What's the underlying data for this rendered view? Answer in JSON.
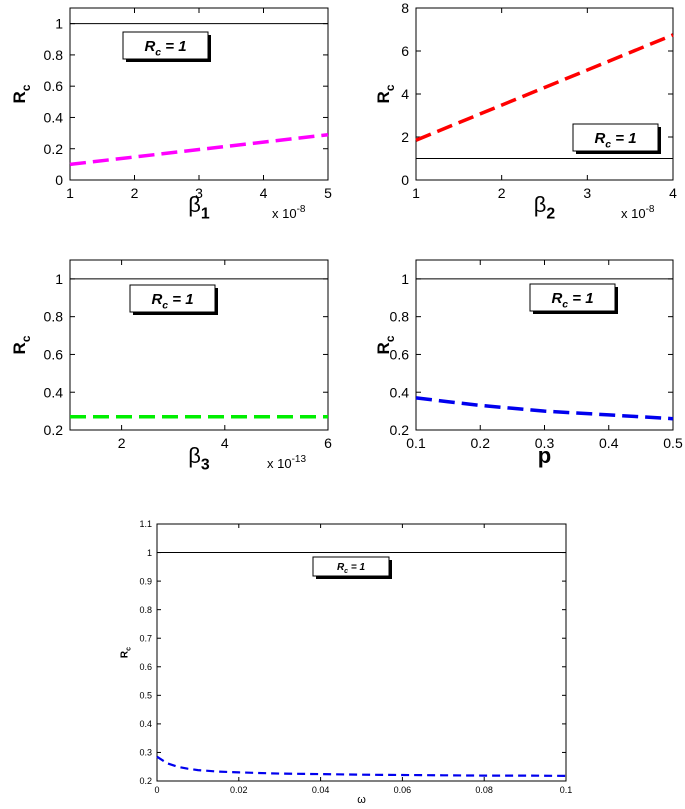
{
  "chart_data": [
    {
      "type": "line",
      "xlabel_sym": "β",
      "xlabel_sub": "1",
      "ylabel_main": "R",
      "ylabel_sub": "c",
      "multiplier_base": "x 10",
      "multiplier_exp": "-8",
      "xlim": [
        1,
        5
      ],
      "ylim": [
        0,
        1.1
      ],
      "xticks": [
        1,
        2,
        3,
        4,
        5
      ],
      "yticks": [
        0,
        0.2,
        0.4,
        0.6,
        0.8,
        1
      ],
      "ytick_labels": [
        "0",
        "0.2",
        "0.4",
        "0.6",
        "0.8",
        "1"
      ],
      "series": [
        {
          "x": [
            1,
            5
          ],
          "y": [
            0.1,
            0.29
          ],
          "color": "#ff00ff",
          "style": "dashed"
        }
      ],
      "reference": {
        "y": 1,
        "label_main": "R",
        "label_sub": "c",
        "label_rest": " = 1",
        "legend": "top-left"
      },
      "grid": false
    },
    {
      "type": "line",
      "xlabel_sym": "β",
      "xlabel_sub": "2",
      "ylabel_main": "R",
      "ylabel_sub": "c",
      "multiplier_base": "x 10",
      "multiplier_exp": "-8",
      "xlim": [
        1,
        4
      ],
      "ylim": [
        0,
        8
      ],
      "xticks": [
        1,
        2,
        3,
        4
      ],
      "yticks": [
        0,
        2,
        4,
        6,
        8
      ],
      "ytick_labels": [
        "0",
        "2",
        "4",
        "6",
        "8"
      ],
      "series": [
        {
          "x": [
            1,
            4
          ],
          "y": [
            1.85,
            6.75
          ],
          "color": "#ff0000",
          "style": "dashed"
        }
      ],
      "reference": {
        "y": 1,
        "label_main": "R",
        "label_sub": "c",
        "label_rest": " = 1",
        "legend": "bottom-right"
      },
      "grid": false
    },
    {
      "type": "line",
      "xlabel_sym": "β",
      "xlabel_sub": "3",
      "ylabel_main": "R",
      "ylabel_sub": "c",
      "multiplier_base": "x 10",
      "multiplier_exp": "-13",
      "xlim": [
        1,
        6
      ],
      "ylim": [
        0.2,
        1.1
      ],
      "xticks": [
        2,
        4,
        6
      ],
      "yticks": [
        0.2,
        0.4,
        0.6,
        0.8,
        1
      ],
      "ytick_labels": [
        "0.2",
        "0.4",
        "0.6",
        "0.8",
        "1"
      ],
      "series": [
        {
          "x": [
            1,
            6
          ],
          "y": [
            0.27,
            0.27
          ],
          "color": "#00ee00",
          "style": "dashed"
        }
      ],
      "reference": {
        "y": 1,
        "label_main": "R",
        "label_sub": "c",
        "label_rest": " = 1",
        "legend": "top-left"
      },
      "grid": false
    },
    {
      "type": "line",
      "xlabel_sym": "p",
      "xlabel_sub": "",
      "ylabel_main": "R",
      "ylabel_sub": "c",
      "multiplier_base": "",
      "multiplier_exp": "",
      "xlim": [
        0.1,
        0.5
      ],
      "ylim": [
        0.2,
        1.1
      ],
      "xticks": [
        0.1,
        0.2,
        0.3,
        0.4,
        0.5
      ],
      "yticks": [
        0.2,
        0.4,
        0.6,
        0.8,
        1
      ],
      "xtick_labels": [
        "0.1",
        "0.2",
        "0.3",
        "0.4",
        "0.5"
      ],
      "ytick_labels": [
        "0.2",
        "0.4",
        "0.6",
        "0.8",
        "1"
      ],
      "series": [
        {
          "x": [
            0.1,
            0.15,
            0.2,
            0.25,
            0.3,
            0.35,
            0.4,
            0.45,
            0.5
          ],
          "y": [
            0.37,
            0.35,
            0.33,
            0.315,
            0.3,
            0.29,
            0.28,
            0.27,
            0.26
          ],
          "color": "#0000ee",
          "style": "dashed"
        }
      ],
      "reference": {
        "y": 1,
        "label_main": "R",
        "label_sub": "c",
        "label_rest": " = 1",
        "legend": "top-right"
      },
      "grid": false
    },
    {
      "type": "line",
      "xlabel_sym": "ω",
      "xlabel_sub": "",
      "ylabel_main": "R",
      "ylabel_sub": "c",
      "multiplier_base": "",
      "multiplier_exp": "",
      "xlim": [
        0,
        0.1
      ],
      "ylim": [
        0.2,
        1.1
      ],
      "xticks": [
        0,
        0.02,
        0.04,
        0.06,
        0.08,
        0.1
      ],
      "xtick_labels": [
        "0",
        "0.02",
        "0.04",
        "0.06",
        "0.08",
        "0.1"
      ],
      "yticks": [
        0.2,
        0.3,
        0.4,
        0.5,
        0.6,
        0.7,
        0.8,
        0.9,
        1,
        1.1
      ],
      "ytick_labels": [
        "0.2",
        "0.3",
        "0.4",
        "0.5",
        "0.6",
        "0.7",
        "0.8",
        "0.9",
        "1",
        "1.1"
      ],
      "series": [
        {
          "x": [
            0,
            0.0025,
            0.005,
            0.0075,
            0.01,
            0.015,
            0.02,
            0.03,
            0.04,
            0.05,
            0.06,
            0.07,
            0.08,
            0.09,
            0.1
          ],
          "y": [
            0.285,
            0.262,
            0.25,
            0.243,
            0.238,
            0.233,
            0.23,
            0.226,
            0.224,
            0.222,
            0.221,
            0.22,
            0.219,
            0.219,
            0.218
          ],
          "color": "#0000ee",
          "style": "dashed"
        }
      ],
      "reference": {
        "y": 1,
        "label_main": "R",
        "label_sub": "c",
        "label_rest": " = 1",
        "legend": "top-center"
      },
      "grid": false
    }
  ]
}
